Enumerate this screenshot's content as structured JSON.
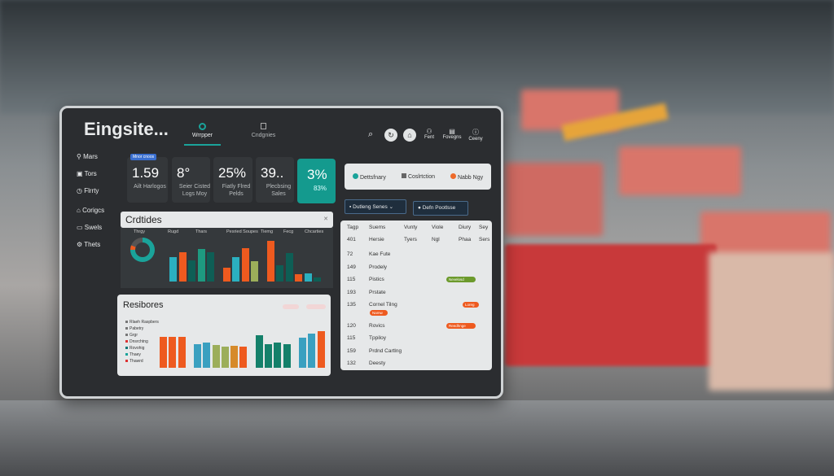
{
  "app": {
    "title": "Eingsite..."
  },
  "nav": {
    "tabs": [
      {
        "label": "Wrrpper",
        "active": true
      },
      {
        "label": "Cndgnies",
        "active": false
      }
    ]
  },
  "toolbar": {
    "items": [
      {
        "label": "Fent"
      },
      {
        "label": "Fovegns"
      },
      {
        "label": "Ceeny"
      }
    ]
  },
  "sidebar": {
    "items": [
      {
        "label": "Mars",
        "icon": "pin-icon"
      },
      {
        "label": "Tors",
        "icon": "box-icon"
      },
      {
        "label": "Flrrty",
        "icon": "clock-icon"
      },
      {
        "label": "Corigcs",
        "icon": "home-icon"
      },
      {
        "label": "Swels",
        "icon": "truck-icon"
      },
      {
        "label": "Thets",
        "icon": "gear-icon"
      }
    ]
  },
  "kpis": [
    {
      "value": "1.59",
      "label": "Ailt Harlogos",
      "badge": "Mnor cnoos"
    },
    {
      "value": "8°",
      "label": "Seier Cisted Logs Moy"
    },
    {
      "value": "25%",
      "label": "Fiatly Flred Pelds"
    },
    {
      "value": "39..",
      "label": "Plecbsing Sales"
    },
    {
      "value": "3%",
      "label": "83%",
      "highlight": true
    }
  ],
  "status": {
    "items": [
      {
        "label": "Dettsfnary",
        "color": "#1aa39a"
      },
      {
        "label": "Coslrtction",
        "color": "#888888"
      },
      {
        "label": "Nabb Ngy",
        "color": "#ee6a2a"
      }
    ]
  },
  "filters": {
    "dropdown": "Dutleng Senes",
    "button": "Defn Pootlsse"
  },
  "table": {
    "headers": [
      [
        "Tagp",
        "Suems",
        "Vunty",
        "Viole",
        "Diury",
        "Sey"
      ],
      [
        "401",
        "Hersie",
        "Tyers",
        "Ngl",
        "Phaa",
        "Sers"
      ]
    ],
    "rows": [
      {
        "id": "72",
        "name": "Kae Fute"
      },
      {
        "id": "149",
        "name": "Prodely"
      },
      {
        "id": "115",
        "name": "Pistics",
        "badge": "Nevelosd",
        "badge_color": "#6c9a2c"
      },
      {
        "id": "193",
        "name": "Prstate"
      },
      {
        "id": "135",
        "name": "Cornel Tilng",
        "badge": "Loreg",
        "badge_color": "#ee5a1f",
        "sub_badge": "Namw"
      },
      {
        "id": "120",
        "name": "Rovics",
        "badge": "Reedhnge",
        "badge_color": "#ee5a1f"
      },
      {
        "id": "115",
        "name": "Tppiloy"
      },
      {
        "id": "159",
        "name": "Prdnd Cartlng"
      },
      {
        "id": "132",
        "name": "Deesty"
      }
    ]
  },
  "charts": {
    "title": "Crdtides",
    "headers": [
      "Thrgy",
      "Rugd",
      "Thars",
      "Pesried Soupes",
      "Tiemg",
      "Fecg",
      "Chcarties"
    ],
    "donut_percent": 75,
    "bars": [
      {
        "value": 60,
        "color": "#2bb0c0"
      },
      {
        "value": 72,
        "color": "#ee5a1f"
      },
      {
        "value": 52,
        "color": "#0e5e55"
      },
      {
        "value": 80,
        "color": "#1e9a80"
      },
      {
        "value": 72,
        "color": "#0e5e55"
      },
      {
        "value": 35,
        "color": "#ee5a1f"
      },
      {
        "value": 60,
        "color": "#2bb0c0"
      },
      {
        "value": 82,
        "color": "#ee5a1f"
      },
      {
        "value": 50,
        "color": "#9cae5a"
      },
      {
        "value": 100,
        "color": "#ee5a1f"
      },
      {
        "value": 40,
        "color": "#0e5e55"
      },
      {
        "value": 70,
        "color": "#0e5e55"
      },
      {
        "value": 18,
        "color": "#ee5a1f"
      },
      {
        "value": 20,
        "color": "#2bb0c0"
      },
      {
        "value": 10,
        "color": "#0e5e55"
      }
    ]
  },
  "resources": {
    "title": "Resibores",
    "legend": [
      "Rlaeh Raspbers",
      "Pabetry",
      "Grgr",
      "Dnsrchtng",
      "Rovohig",
      "Thaey",
      "Thawrd"
    ],
    "bars": [
      {
        "value": 85,
        "color": "#ee5a1f"
      },
      {
        "value": 85,
        "color": "#ee5a1f"
      },
      {
        "value": 85,
        "color": "#ee5a1f"
      },
      {
        "value": 65,
        "color": "#3aa0c0"
      },
      {
        "value": 68,
        "color": "#3aa0c0"
      },
      {
        "value": 63,
        "color": "#9cae5a"
      },
      {
        "value": 57,
        "color": "#9cae5a"
      },
      {
        "value": 60,
        "color": "#d68a2a"
      },
      {
        "value": 58,
        "color": "#ee5a1f"
      },
      {
        "value": 90,
        "color": "#14806a"
      },
      {
        "value": 65,
        "color": "#14806a"
      },
      {
        "value": 70,
        "color": "#14806a"
      },
      {
        "value": 64,
        "color": "#14806a"
      },
      {
        "value": 82,
        "color": "#3aa0c0"
      },
      {
        "value": 93,
        "color": "#3aa0c0"
      },
      {
        "value": 100,
        "color": "#ee5a1f"
      }
    ]
  }
}
